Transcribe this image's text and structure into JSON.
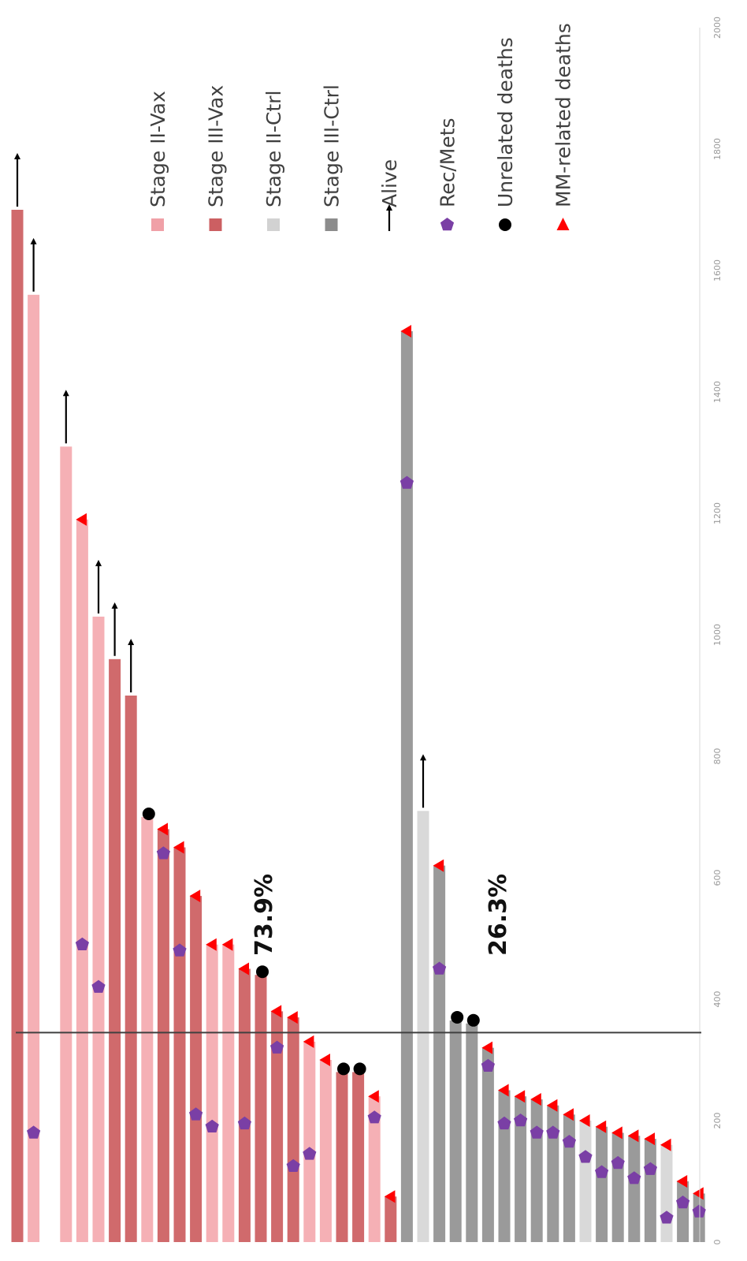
{
  "chart_data": {
    "type": "bar",
    "orientation": "horizontal",
    "chart_subtype": "swimmer plot",
    "rotated_90_ccw": true,
    "xlim": [
      0,
      2000
    ],
    "x_ticks": [
      0,
      200,
      400,
      600,
      800,
      1000,
      1200,
      1400,
      1600,
      1800,
      2000
    ],
    "threshold_line": 345,
    "annotations": [
      {
        "text": "73.9%",
        "x": 500,
        "group": "Vax"
      },
      {
        "text": "26.3%",
        "x": 500,
        "group": "Ctrl"
      }
    ],
    "legend_placement": "right",
    "legend": [
      {
        "label": "Stage II-Vax",
        "marker": "square",
        "color": "#f0a0a7"
      },
      {
        "label": "Stage III-Vax",
        "marker": "square",
        "color": "#cc5f62"
      },
      {
        "label": "Stage II-Ctrl",
        "marker": "square",
        "color": "#d2d2d2"
      },
      {
        "label": "Stage III-Ctrl",
        "marker": "square",
        "color": "#8c8c8c"
      },
      {
        "label": "Alive",
        "marker": "arrow",
        "color": "#000000"
      },
      {
        "label": "Rec/Mets",
        "marker": "pentagon",
        "color": "#7a3fa5"
      },
      {
        "label": "Unrelated deaths",
        "marker": "circle",
        "color": "#000000"
      },
      {
        "label": "MM-related deaths",
        "marker": "triangle",
        "color": "#ff0000"
      }
    ],
    "series": [
      {
        "name": "Stage II-Vax",
        "color": "#f5b0b5"
      },
      {
        "name": "Stage III-Vax",
        "color": "#d06a6c"
      },
      {
        "name": "Stage II-Ctrl",
        "color": "#d9d9d9"
      },
      {
        "name": "Stage III-Ctrl",
        "color": "#9a9a9a"
      }
    ],
    "patients": [
      {
        "stage": "Stage III-Vax",
        "duration": 1700,
        "event": "alive"
      },
      {
        "stage": "Stage II-Vax",
        "duration": 1560,
        "event": "alive",
        "recurrence": 180
      },
      {
        "stage": "Stage III-Vax",
        "duration": 0
      },
      {
        "stage": "Stage II-Vax",
        "duration": 1310,
        "event": "alive"
      },
      {
        "stage": "Stage II-Vax",
        "duration": 1190,
        "event": "mm_death",
        "recurrence": 490
      },
      {
        "stage": "Stage II-Vax",
        "duration": 1030,
        "event": "alive",
        "recurrence": 420
      },
      {
        "stage": "Stage III-Vax",
        "duration": 960,
        "event": "alive"
      },
      {
        "stage": "Stage III-Vax",
        "duration": 900,
        "event": "alive"
      },
      {
        "stage": "Stage II-Vax",
        "duration": 700,
        "event": "unrelated_death"
      },
      {
        "stage": "Stage III-Vax",
        "duration": 680,
        "event": "mm_death",
        "recurrence": 640
      },
      {
        "stage": "Stage III-Vax",
        "duration": 650,
        "event": "mm_death",
        "recurrence": 480
      },
      {
        "stage": "Stage III-Vax",
        "duration": 570,
        "event": "mm_death",
        "recurrence": 210
      },
      {
        "stage": "Stage II-Vax",
        "duration": 490,
        "event": "mm_death",
        "recurrence": 190
      },
      {
        "stage": "Stage II-Vax",
        "duration": 490,
        "event": "mm_death"
      },
      {
        "stage": "Stage III-Vax",
        "duration": 450,
        "event": "mm_death",
        "recurrence": 195
      },
      {
        "stage": "Stage III-Vax",
        "duration": 440,
        "event": "unrelated_death"
      },
      {
        "stage": "Stage III-Vax",
        "duration": 380,
        "event": "mm_death",
        "recurrence": 320
      },
      {
        "stage": "Stage III-Vax",
        "duration": 370,
        "event": "mm_death",
        "recurrence": 125
      },
      {
        "stage": "Stage II-Vax",
        "duration": 330,
        "event": "mm_death",
        "recurrence": 145
      },
      {
        "stage": "Stage II-Vax",
        "duration": 300,
        "event": "mm_death"
      },
      {
        "stage": "Stage III-Vax",
        "duration": 280,
        "event": "unrelated_death"
      },
      {
        "stage": "Stage III-Vax",
        "duration": 280,
        "event": "unrelated_death"
      },
      {
        "stage": "Stage II-Vax",
        "duration": 240,
        "event": "mm_death",
        "recurrence": 205
      },
      {
        "stage": "Stage III-Vax",
        "duration": 75,
        "event": "mm_death"
      },
      {
        "stage": "Stage III-Ctrl",
        "duration": 1500,
        "event": "mm_death",
        "recurrence": 1250
      },
      {
        "stage": "Stage II-Ctrl",
        "duration": 710,
        "event": "alive"
      },
      {
        "stage": "Stage III-Ctrl",
        "duration": 620,
        "event": "mm_death",
        "recurrence": 450
      },
      {
        "stage": "Stage III-Ctrl",
        "duration": 365,
        "event": "unrelated_death"
      },
      {
        "stage": "Stage III-Ctrl",
        "duration": 360,
        "event": "unrelated_death"
      },
      {
        "stage": "Stage III-Ctrl",
        "duration": 320,
        "event": "mm_death",
        "recurrence": 290
      },
      {
        "stage": "Stage III-Ctrl",
        "duration": 250,
        "event": "mm_death",
        "recurrence": 195
      },
      {
        "stage": "Stage III-Ctrl",
        "duration": 240,
        "event": "mm_death",
        "recurrence": 200
      },
      {
        "stage": "Stage III-Ctrl",
        "duration": 235,
        "event": "mm_death",
        "recurrence": 180
      },
      {
        "stage": "Stage III-Ctrl",
        "duration": 225,
        "event": "mm_death",
        "recurrence": 180
      },
      {
        "stage": "Stage III-Ctrl",
        "duration": 210,
        "event": "mm_death",
        "recurrence": 165
      },
      {
        "stage": "Stage II-Ctrl",
        "duration": 200,
        "event": "mm_death",
        "recurrence": 140
      },
      {
        "stage": "Stage III-Ctrl",
        "duration": 190,
        "event": "mm_death",
        "recurrence": 115
      },
      {
        "stage": "Stage III-Ctrl",
        "duration": 180,
        "event": "mm_death",
        "recurrence": 130
      },
      {
        "stage": "Stage III-Ctrl",
        "duration": 175,
        "event": "mm_death",
        "recurrence": 105
      },
      {
        "stage": "Stage III-Ctrl",
        "duration": 170,
        "event": "mm_death",
        "recurrence": 120
      },
      {
        "stage": "Stage II-Ctrl",
        "duration": 160,
        "event": "mm_death",
        "recurrence": 40
      },
      {
        "stage": "Stage III-Ctrl",
        "duration": 100,
        "event": "mm_death",
        "recurrence": 65
      },
      {
        "stage": "Stage III-Ctrl",
        "duration": 80,
        "event": "mm_death",
        "recurrence": 50
      }
    ]
  }
}
